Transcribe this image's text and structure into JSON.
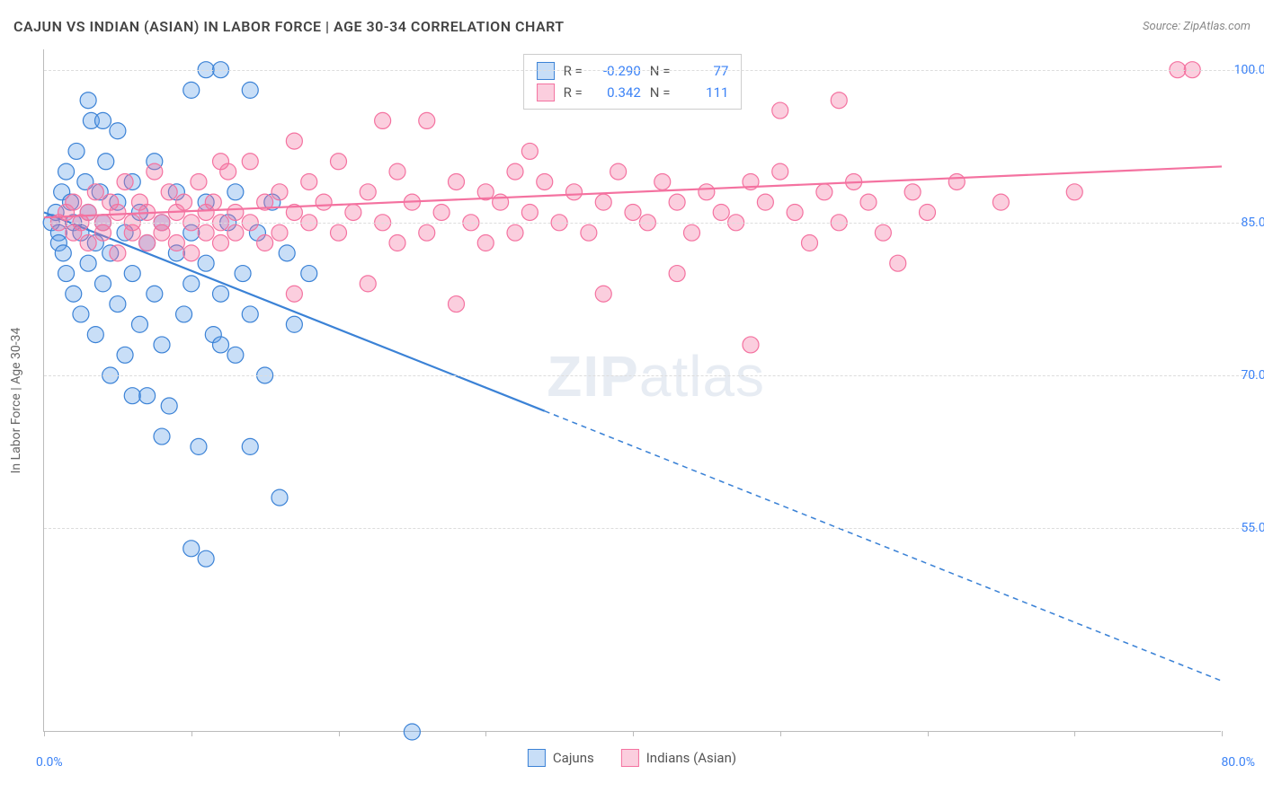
{
  "title": "CAJUN VS INDIAN (ASIAN) IN LABOR FORCE | AGE 30-34 CORRELATION CHART",
  "source_label": "Source: ZipAtlas.com",
  "y_axis_label": "In Labor Force | Age 30-34",
  "watermark_bold": "ZIP",
  "watermark_light": "atlas",
  "chart": {
    "type": "scatter-with-regression",
    "background_color": "#ffffff",
    "grid_color": "#dddddd",
    "axis_color": "#bbbbbb",
    "xlim": [
      0,
      80
    ],
    "ylim": [
      35,
      102
    ],
    "x_ticks": [
      0,
      10,
      20,
      30,
      40,
      50,
      60,
      70,
      80
    ],
    "x_tick_label_start": "0.0%",
    "x_tick_label_end": "80.0%",
    "y_grid": [
      {
        "value": 100,
        "label": "100.0%",
        "color": "#3b82f6"
      },
      {
        "value": 85,
        "label": "85.0%",
        "color": "#3b82f6"
      },
      {
        "value": 70,
        "label": "70.0%",
        "color": "#3b82f6"
      },
      {
        "value": 55,
        "label": "55.0%",
        "color": "#3b82f6"
      }
    ],
    "marker_radius": 9,
    "marker_opacity": 0.45,
    "marker_stroke_width": 1.2,
    "line_width": 2.2
  },
  "series": [
    {
      "key": "cajuns",
      "label": "Cajuns",
      "color": "#4a8fe0",
      "fill": "rgba(97,160,233,0.35)",
      "stroke": "#3b82d6",
      "R": "-0.290",
      "N": "77",
      "regression": {
        "x1": 0,
        "y1": 86,
        "x2_solid": 34,
        "y2_solid": 66.5,
        "x2": 80,
        "y2": 40
      },
      "points": [
        [
          0.5,
          85
        ],
        [
          0.8,
          86
        ],
        [
          1,
          84
        ],
        [
          1,
          83
        ],
        [
          1.2,
          88
        ],
        [
          1.3,
          82
        ],
        [
          1.5,
          90
        ],
        [
          1.5,
          80
        ],
        [
          1.8,
          87
        ],
        [
          2,
          85
        ],
        [
          2,
          78
        ],
        [
          2.2,
          92
        ],
        [
          2.5,
          84
        ],
        [
          2.5,
          76
        ],
        [
          2.8,
          89
        ],
        [
          3,
          86
        ],
        [
          3,
          81
        ],
        [
          3.2,
          95
        ],
        [
          3.5,
          83
        ],
        [
          3.5,
          74
        ],
        [
          3.8,
          88
        ],
        [
          4,
          85
        ],
        [
          4,
          79
        ],
        [
          4.2,
          91
        ],
        [
          4.5,
          82
        ],
        [
          4.5,
          70
        ],
        [
          5,
          87
        ],
        [
          5,
          77
        ],
        [
          5,
          94
        ],
        [
          5.5,
          84
        ],
        [
          5.5,
          72
        ],
        [
          6,
          89
        ],
        [
          6,
          80
        ],
        [
          6.5,
          75
        ],
        [
          6.5,
          86
        ],
        [
          7,
          83
        ],
        [
          7,
          68
        ],
        [
          7.5,
          91
        ],
        [
          7.5,
          78
        ],
        [
          8,
          85
        ],
        [
          8,
          73
        ],
        [
          8.5,
          67
        ],
        [
          9,
          82
        ],
        [
          9,
          88
        ],
        [
          9.5,
          76
        ],
        [
          10,
          84
        ],
        [
          10,
          98
        ],
        [
          10,
          79
        ],
        [
          10.5,
          63
        ],
        [
          11,
          81
        ],
        [
          11,
          87
        ],
        [
          11,
          100
        ],
        [
          11.5,
          74
        ],
        [
          12,
          100
        ],
        [
          12,
          78
        ],
        [
          12.5,
          85
        ],
        [
          13,
          72
        ],
        [
          13,
          88
        ],
        [
          13.5,
          80
        ],
        [
          14,
          98
        ],
        [
          14,
          76
        ],
        [
          14.5,
          84
        ],
        [
          15,
          70
        ],
        [
          15.5,
          87
        ],
        [
          16,
          58
        ],
        [
          16.5,
          82
        ],
        [
          17,
          75
        ],
        [
          18,
          80
        ],
        [
          11,
          52
        ],
        [
          14,
          63
        ],
        [
          10,
          53
        ],
        [
          8,
          64
        ],
        [
          6,
          68
        ],
        [
          4,
          95
        ],
        [
          3,
          97
        ],
        [
          25,
          35
        ],
        [
          12,
          73
        ]
      ]
    },
    {
      "key": "indians",
      "label": "Indians (Asian)",
      "color": "#f472a0",
      "fill": "rgba(244,114,160,0.35)",
      "stroke": "#f472a0",
      "R": "0.342",
      "N": "111",
      "regression": {
        "x1": 0,
        "y1": 85.5,
        "x2_solid": 80,
        "y2_solid": 90.5,
        "x2": 80,
        "y2": 90.5
      },
      "points": [
        [
          1,
          85
        ],
        [
          1.5,
          86
        ],
        [
          2,
          84
        ],
        [
          2,
          87
        ],
        [
          2.5,
          85
        ],
        [
          3,
          86
        ],
        [
          3,
          83
        ],
        [
          3.5,
          88
        ],
        [
          4,
          85
        ],
        [
          4,
          84
        ],
        [
          4.5,
          87
        ],
        [
          5,
          86
        ],
        [
          5,
          82
        ],
        [
          5.5,
          89
        ],
        [
          6,
          85
        ],
        [
          6,
          84
        ],
        [
          6.5,
          87
        ],
        [
          7,
          86
        ],
        [
          7,
          83
        ],
        [
          7.5,
          90
        ],
        [
          8,
          85
        ],
        [
          8,
          84
        ],
        [
          8.5,
          88
        ],
        [
          9,
          86
        ],
        [
          9,
          83
        ],
        [
          9.5,
          87
        ],
        [
          10,
          85
        ],
        [
          10,
          82
        ],
        [
          10.5,
          89
        ],
        [
          11,
          86
        ],
        [
          11,
          84
        ],
        [
          11.5,
          87
        ],
        [
          12,
          85
        ],
        [
          12,
          83
        ],
        [
          12.5,
          90
        ],
        [
          13,
          86
        ],
        [
          13,
          84
        ],
        [
          14,
          91
        ],
        [
          14,
          85
        ],
        [
          15,
          87
        ],
        [
          15,
          83
        ],
        [
          16,
          88
        ],
        [
          16,
          84
        ],
        [
          17,
          86
        ],
        [
          17,
          78
        ],
        [
          18,
          89
        ],
        [
          18,
          85
        ],
        [
          19,
          87
        ],
        [
          20,
          91
        ],
        [
          20,
          84
        ],
        [
          21,
          86
        ],
        [
          22,
          88
        ],
        [
          22,
          79
        ],
        [
          23,
          85
        ],
        [
          24,
          90
        ],
        [
          24,
          83
        ],
        [
          25,
          87
        ],
        [
          26,
          95
        ],
        [
          26,
          84
        ],
        [
          27,
          86
        ],
        [
          28,
          89
        ],
        [
          28,
          77
        ],
        [
          29,
          85
        ],
        [
          30,
          88
        ],
        [
          30,
          83
        ],
        [
          31,
          87
        ],
        [
          32,
          90
        ],
        [
          32,
          84
        ],
        [
          33,
          86
        ],
        [
          34,
          89
        ],
        [
          35,
          85
        ],
        [
          36,
          88
        ],
        [
          37,
          84
        ],
        [
          38,
          87
        ],
        [
          39,
          90
        ],
        [
          40,
          86
        ],
        [
          41,
          85
        ],
        [
          42,
          89
        ],
        [
          43,
          87
        ],
        [
          44,
          84
        ],
        [
          45,
          88
        ],
        [
          46,
          99
        ],
        [
          46,
          86
        ],
        [
          47,
          85
        ],
        [
          48,
          89
        ],
        [
          49,
          87
        ],
        [
          50,
          90
        ],
        [
          51,
          86
        ],
        [
          52,
          83
        ],
        [
          53,
          88
        ],
        [
          54,
          85
        ],
        [
          55,
          89
        ],
        [
          56,
          87
        ],
        [
          57,
          84
        ],
        [
          58,
          81
        ],
        [
          59,
          88
        ],
        [
          60,
          86
        ],
        [
          48,
          73
        ],
        [
          38,
          78
        ],
        [
          33,
          92
        ],
        [
          43,
          80
        ],
        [
          50,
          96
        ],
        [
          62,
          89
        ],
        [
          77,
          100
        ],
        [
          78,
          100
        ],
        [
          70,
          88
        ],
        [
          65,
          87
        ],
        [
          54,
          97
        ],
        [
          23,
          95
        ],
        [
          17,
          93
        ],
        [
          12,
          91
        ]
      ]
    }
  ]
}
